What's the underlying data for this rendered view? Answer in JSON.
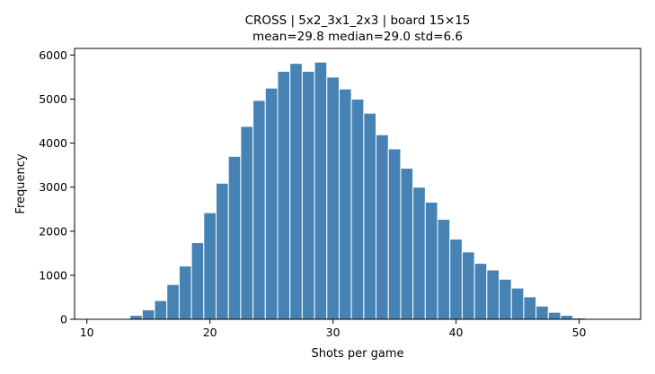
{
  "chart_data": {
    "type": "bar",
    "title": "CROSS  |  5x2_3x1_2x3  |  board 15×15",
    "subtitle": "mean=29.8  median=29.0  std=6.6",
    "xlabel": "Shots per game",
    "ylabel": "Frequency",
    "xlim": [
      9.0,
      55.0
    ],
    "ylim": [
      0,
      6150
    ],
    "xticks": [
      10,
      20,
      30,
      40,
      50
    ],
    "yticks": [
      0,
      1000,
      2000,
      3000,
      4000,
      5000,
      6000
    ],
    "bin_width": 1,
    "x": [
      13,
      14,
      15,
      16,
      17,
      18,
      19,
      20,
      21,
      22,
      23,
      24,
      25,
      26,
      27,
      28,
      29,
      30,
      31,
      32,
      33,
      34,
      35,
      36,
      37,
      38,
      39,
      40,
      41,
      42,
      43,
      44,
      45,
      46,
      47,
      48,
      49,
      50,
      51
    ],
    "values": [
      15,
      90,
      215,
      425,
      790,
      1210,
      1740,
      2420,
      3090,
      3700,
      4380,
      4970,
      5250,
      5630,
      5810,
      5630,
      5840,
      5500,
      5230,
      5000,
      4680,
      4190,
      3870,
      3430,
      3000,
      2660,
      2270,
      1820,
      1530,
      1270,
      1120,
      910,
      710,
      510,
      300,
      160,
      90,
      30,
      10
    ],
    "grid": false,
    "color": "#4682b4"
  }
}
